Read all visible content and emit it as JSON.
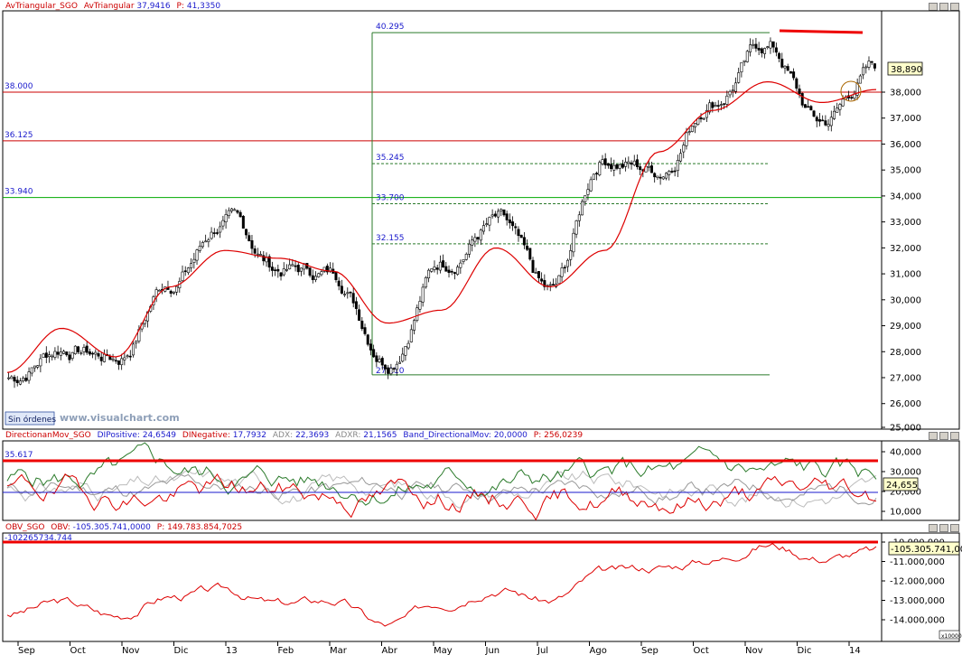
{
  "panels": {
    "price": {
      "title": {
        "name": "AvTriangular_SGO",
        "t1": "AvTriangular",
        "v1": "37,9416",
        "t2": "P:",
        "v2": "41,3350"
      },
      "y_ticks": [
        "26,000",
        "27,000",
        "28,000",
        "29,000",
        "30,000",
        "31,000",
        "32,000",
        "33,000",
        "34,000",
        "35,000",
        "36,000",
        "37,000",
        "38,000",
        "25,000"
      ],
      "y_tick_values": [
        26000,
        27000,
        28000,
        29000,
        30000,
        31000,
        32000,
        33000,
        34000,
        35000,
        36000,
        37000,
        38000,
        25000
      ],
      "last_value": "38,890",
      "h_lines": [
        {
          "label": "38.000",
          "value": 38000,
          "color": "#cc0000"
        },
        {
          "label": "36.125",
          "value": 36125,
          "color": "#cc0000"
        },
        {
          "label": "33.940",
          "value": 33940,
          "color": "#00aa00"
        }
      ],
      "fib_levels": [
        {
          "label": "40.295",
          "value": 40295
        },
        {
          "label": "35.245",
          "value": 35245
        },
        {
          "label": "33.700",
          "value": 33700
        },
        {
          "label": "32.155",
          "value": 32155
        },
        {
          "label": "27.110",
          "value": 27110
        }
      ],
      "orders_button": "Sin órdenes",
      "watermark": "www.visualchart.com"
    },
    "dmi": {
      "title": {
        "name": "DirectionanMov_SGO",
        "dip_label": "DIPositive:",
        "dip": "24,6549",
        "din_label": "DINegative:",
        "din": "17,7932",
        "adx_label": "ADX:",
        "adx": "22,3693",
        "adxr_label": "ADXR:",
        "adxr": "21,1565",
        "band_label": "Band_DirectionalMov:",
        "band": "20,0000",
        "p_label": "P:",
        "p": "256,0239"
      },
      "level_label": "35.617",
      "y_ticks": [
        "10,000",
        "20,000",
        "30,000",
        "40,000"
      ],
      "y_tick_values": [
        10000,
        20000,
        30000,
        40000
      ],
      "last_value": "24,655"
    },
    "obv": {
      "title": {
        "name": "OBV_SGO",
        "obv_label": "OBV:",
        "obv": "-105.305.741,0000",
        "p_label": "P:",
        "p": "149.783.854,7025"
      },
      "level_label": "-102265734.744",
      "y_ticks": [
        "-10.000,000",
        "-11.000,000",
        "-12.000,000",
        "-13.000,000",
        "-14.000,000"
      ],
      "y_tick_values": [
        -10,
        -11,
        -12,
        -13,
        -14
      ],
      "last_value": "-105.305.741,000",
      "scale_note": "x10000"
    }
  },
  "x_axis": {
    "labels": [
      "Sep",
      "Oct",
      "Nov",
      "Dic",
      "13",
      "Feb",
      "Mar",
      "Abr",
      "May",
      "Jun",
      "Jul",
      "Ago",
      "Sep",
      "Oct",
      "Nov",
      "Dic",
      "14"
    ]
  },
  "chart_data": {
    "type": "line",
    "x": [
      "Sep",
      "Oct",
      "Nov",
      "Dic",
      "13",
      "Feb",
      "Mar",
      "Abr",
      "May",
      "Jun",
      "Jul",
      "Ago",
      "Sep",
      "Oct",
      "Nov",
      "Dic",
      "14"
    ],
    "series": [
      {
        "name": "AvTriangular",
        "values": [
          27200,
          28900,
          27800,
          30500,
          31900,
          31600,
          31100,
          29100,
          29600,
          32000,
          30500,
          31900,
          35700,
          37300,
          38400,
          37600,
          38100
        ]
      },
      {
        "values": [
          27000,
          28200,
          27800,
          30800,
          33000,
          31200,
          31000,
          27900,
          31500,
          33000,
          30100,
          35500,
          35000,
          37800,
          39800,
          36800,
          38890
        ]
      }
    ],
    "ylim": [
      25000,
      41000
    ],
    "color_colors": {
      "price": "#000000",
      "ma": "#dd0000"
    }
  },
  "colors": {
    "red": "#cc0000",
    "green": "#2a7a2a",
    "blue": "#1a1acc",
    "axis": "#000000"
  }
}
